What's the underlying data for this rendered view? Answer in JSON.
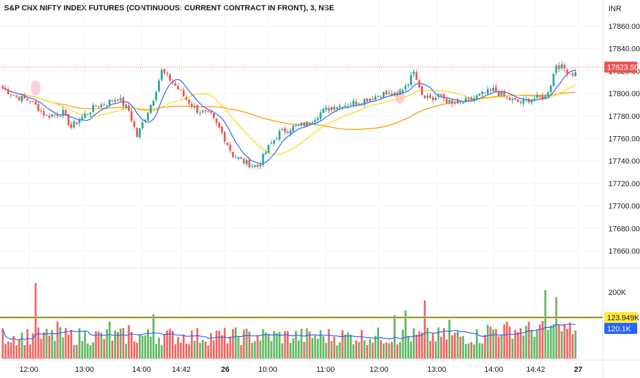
{
  "title": "S&P CNX NIFTY INDEX FUTURES (CONTINUOUS: CURRENT CONTRACT IN FRONT), 3, NSE",
  "currency": "INR",
  "colors": {
    "up": "#26a69a",
    "up_volume": "#4caf50",
    "down": "#ef5350",
    "ma_fast": "#2962ff",
    "ma_mid": "#ffd600",
    "ma_slow": "#ff9800",
    "volume_ma": "#2962ff",
    "volume_level": "#ffeb3b",
    "volume_level_line": "#1e3a8a",
    "grid": "#f0f3fa",
    "price_line": "#ef5350"
  },
  "chart_data": [
    {
      "type": "candlestick",
      "name": "price",
      "ylim": [
        17640,
        17880
      ],
      "y_ticks": [
        "17860.00",
        "17840.00",
        "17820.00",
        "17800.00",
        "17780.00",
        "17760.00",
        "17740.00",
        "17720.00",
        "17700.00",
        "17680.00",
        "17660.00"
      ],
      "x_ticks": [
        "12:00",
        "13:00",
        "14:00",
        "14:42",
        "26",
        "10:00",
        "11:00",
        "12:00",
        "13:00",
        "14:00",
        "14:42",
        "27"
      ],
      "bold_x_ticks": [
        "26",
        "27"
      ],
      "last_price": "17823.50",
      "anchors": [
        [
          0,
          17805
        ],
        [
          5,
          17797
        ],
        [
          10,
          17794
        ],
        [
          16,
          17780
        ],
        [
          22,
          17783
        ],
        [
          25,
          17770
        ],
        [
          28,
          17777
        ],
        [
          34,
          17789
        ],
        [
          36,
          17790
        ],
        [
          40,
          17794
        ],
        [
          42,
          17796
        ],
        [
          46,
          17785
        ],
        [
          49,
          17762
        ],
        [
          55,
          17796
        ],
        [
          58,
          17820
        ],
        [
          62,
          17810
        ],
        [
          67,
          17795
        ],
        [
          71,
          17785
        ],
        [
          76,
          17780
        ],
        [
          80,
          17765
        ],
        [
          84,
          17745
        ],
        [
          89,
          17738
        ],
        [
          93,
          17735
        ],
        [
          97,
          17752
        ],
        [
          101,
          17765
        ],
        [
          106,
          17770
        ],
        [
          111,
          17773
        ],
        [
          116,
          17783
        ],
        [
          120,
          17788
        ],
        [
          125,
          17790
        ],
        [
          130,
          17793
        ],
        [
          134,
          17796
        ],
        [
          139,
          17800
        ],
        [
          144,
          17798
        ],
        [
          149,
          17814
        ],
        [
          150,
          17822
        ],
        [
          153,
          17800
        ],
        [
          157,
          17795
        ],
        [
          160,
          17798
        ],
        [
          164,
          17790
        ],
        [
          168,
          17792
        ],
        [
          172,
          17796
        ],
        [
          176,
          17800
        ],
        [
          179,
          17803
        ],
        [
          184,
          17796
        ],
        [
          187,
          17793
        ],
        [
          189,
          17792
        ],
        [
          192,
          17795
        ],
        [
          198,
          17797
        ],
        [
          200,
          17809
        ],
        [
          202,
          17826
        ],
        [
          205,
          17822
        ],
        [
          207,
          17818
        ]
      ]
    },
    {
      "type": "bar",
      "name": "volume",
      "ylim": [
        0,
        250000
      ],
      "y_ticks": [
        "200K"
      ],
      "volume_level_label": "123.949K",
      "volume_level": 123949,
      "volume_ma_label": "120.1K",
      "volume_ma": 120100
    }
  ]
}
